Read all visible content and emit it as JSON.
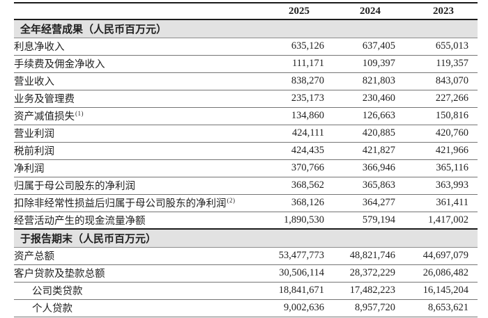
{
  "table": {
    "years": [
      "2025",
      "2024",
      "2023"
    ],
    "sections": [
      {
        "header": "全年经营成果（人民币百万元）",
        "rows": [
          {
            "label": "利息净收入",
            "sup": "",
            "indent": false,
            "values": [
              "635,126",
              "637,405",
              "655,013"
            ]
          },
          {
            "label": "手续费及佣金净收入",
            "sup": "",
            "indent": false,
            "values": [
              "111,171",
              "109,397",
              "119,357"
            ]
          },
          {
            "label": "营业收入",
            "sup": "",
            "indent": false,
            "values": [
              "838,270",
              "821,803",
              "843,070"
            ]
          },
          {
            "label": "业务及管理费",
            "sup": "",
            "indent": false,
            "values": [
              "235,173",
              "230,460",
              "227,266"
            ]
          },
          {
            "label": "资产减值损失",
            "sup": "(1)",
            "indent": false,
            "values": [
              "134,860",
              "126,663",
              "150,816"
            ]
          },
          {
            "label": "营业利润",
            "sup": "",
            "indent": false,
            "values": [
              "424,111",
              "420,885",
              "420,760"
            ]
          },
          {
            "label": "税前利润",
            "sup": "",
            "indent": false,
            "values": [
              "424,435",
              "421,827",
              "421,966"
            ]
          },
          {
            "label": "净利润",
            "sup": "",
            "indent": false,
            "values": [
              "370,766",
              "366,946",
              "365,116"
            ]
          },
          {
            "label": "归属于母公司股东的净利润",
            "sup": "",
            "indent": false,
            "values": [
              "368,562",
              "365,863",
              "363,993"
            ]
          },
          {
            "label": "扣除非经常性损益后归属于母公司股东的净利润",
            "sup": "(2)",
            "indent": false,
            "values": [
              "368,126",
              "364,277",
              "361,411"
            ]
          },
          {
            "label": "经营活动产生的现金流量净额",
            "sup": "",
            "indent": false,
            "values": [
              "1,890,530",
              "579,194",
              "1,417,002"
            ]
          }
        ]
      },
      {
        "header": "于报告期末（人民币百万元）",
        "rows": [
          {
            "label": "资产总额",
            "sup": "",
            "indent": false,
            "values": [
              "53,477,773",
              "48,821,746",
              "44,697,079"
            ]
          },
          {
            "label": "客户贷款及垫款总额",
            "sup": "",
            "indent": false,
            "values": [
              "30,506,114",
              "28,372,229",
              "26,086,482"
            ]
          },
          {
            "label": "公司类贷款",
            "sup": "",
            "indent": true,
            "values": [
              "18,841,671",
              "17,482,223",
              "16,145,204"
            ]
          },
          {
            "label": "个人贷款",
            "sup": "",
            "indent": true,
            "values": [
              "9,002,636",
              "8,957,720",
              "8,653,621"
            ]
          }
        ]
      }
    ]
  },
  "colors": {
    "section_band_background": "#e2e2e2",
    "thick_rule": "#1b1b1b",
    "thin_rule": "#747474",
    "text": "#1f1f1f",
    "page_background": "#ffffff"
  }
}
